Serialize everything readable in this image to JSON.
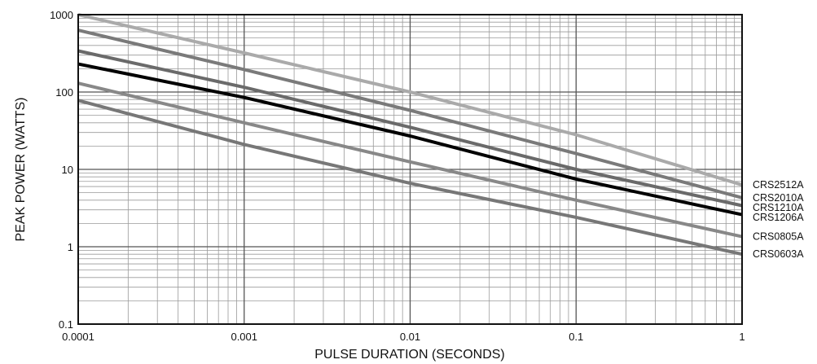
{
  "chart_data": {
    "type": "line",
    "x_scale": "log",
    "y_scale": "log",
    "xlabel": "PULSE DURATION (SECONDS)",
    "ylabel": "PEAK POWER (WATTS)",
    "xlim": [
      0.0001,
      1
    ],
    "ylim": [
      0.1,
      1000
    ],
    "x_ticks": [
      "0.0001",
      "0.001",
      "0.01",
      "0.1",
      "1"
    ],
    "y_ticks": [
      "1000",
      "100",
      "10",
      "1",
      "0.1"
    ],
    "grid": true,
    "series": [
      {
        "name": "CRS2512A",
        "color": "#aaaaaa",
        "points": [
          [
            0.0001,
            1000
          ],
          [
            0.001,
            320
          ],
          [
            0.01,
            100
          ],
          [
            0.1,
            28
          ],
          [
            1,
            6.3
          ]
        ]
      },
      {
        "name": "CRS2010A",
        "color": "#7a7a7a",
        "points": [
          [
            0.0001,
            630
          ],
          [
            0.001,
            195
          ],
          [
            0.01,
            58
          ],
          [
            0.1,
            16
          ],
          [
            1,
            4.3
          ]
        ]
      },
      {
        "name": "CRS1210A",
        "color": "#6a6a6a",
        "points": [
          [
            0.0001,
            340
          ],
          [
            0.001,
            115
          ],
          [
            0.01,
            35
          ],
          [
            0.1,
            10
          ],
          [
            1,
            3.4
          ]
        ]
      },
      {
        "name": "CRS1206A",
        "color": "#000000",
        "points": [
          [
            0.0001,
            230
          ],
          [
            0.001,
            85
          ],
          [
            0.01,
            27
          ],
          [
            0.1,
            7.5
          ],
          [
            1,
            2.6
          ]
        ]
      },
      {
        "name": "CRS0805A",
        "color": "#888888",
        "points": [
          [
            0.0001,
            130
          ],
          [
            0.001,
            40
          ],
          [
            0.01,
            12.5
          ],
          [
            0.1,
            4
          ],
          [
            1,
            1.35
          ]
        ]
      },
      {
        "name": "CRS0603A",
        "color": "#777777",
        "points": [
          [
            0.0001,
            78
          ],
          [
            0.001,
            21
          ],
          [
            0.01,
            6.6
          ],
          [
            0.1,
            2.4
          ],
          [
            1,
            0.8
          ]
        ]
      }
    ]
  }
}
